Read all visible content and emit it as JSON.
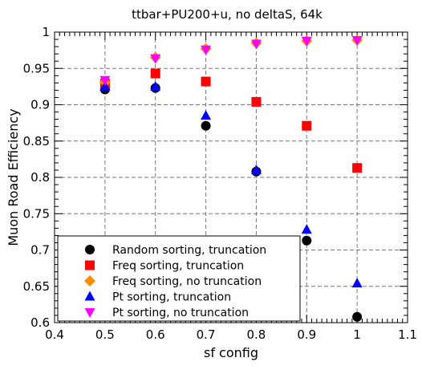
{
  "chart_data": {
    "type": "scatter",
    "title": "ttbar+PU200+u, no deltaS, 64k",
    "xlabel": "sf config",
    "ylabel": "Muon Road Efficiency",
    "xlim": [
      0.4,
      1.1
    ],
    "ylim": [
      0.6,
      1.0
    ],
    "xticks": [
      "0.4",
      "0.5",
      "0.6",
      "0.7",
      "0.8",
      "0.9",
      "1",
      "1.1"
    ],
    "yticks": [
      "0.6",
      "0.65",
      "0.7",
      "0.75",
      "0.8",
      "0.85",
      "0.9",
      "0.95",
      "1"
    ],
    "grid": true,
    "legend_position": "lower-left",
    "series": [
      {
        "name": "Random sorting, truncation",
        "marker": "circle",
        "color": "#000000",
        "x": [
          0.5,
          0.6,
          0.7,
          0.8,
          0.9,
          1.0
        ],
        "y": [
          0.921,
          0.923,
          0.871,
          0.808,
          0.713,
          0.608
        ]
      },
      {
        "name": "Freq sorting, truncation",
        "marker": "square",
        "color": "#ff0000",
        "x": [
          0.5,
          0.6,
          0.7,
          0.8,
          0.9,
          1.0
        ],
        "y": [
          0.929,
          0.943,
          0.932,
          0.904,
          0.871,
          0.813
        ]
      },
      {
        "name": "Freq sorting, no truncation",
        "marker": "diamond",
        "color": "#ff8c00",
        "x": [
          0.5,
          0.6,
          0.7,
          0.8,
          0.9,
          1.0
        ],
        "y": [
          0.931,
          0.965,
          0.977,
          0.985,
          0.988,
          0.989
        ]
      },
      {
        "name": "Pt sorting, truncation",
        "marker": "triangle-up",
        "color": "#0000ff",
        "x": [
          0.5,
          0.6,
          0.7,
          0.8,
          0.9,
          1.0
        ],
        "y": [
          0.925,
          0.925,
          0.885,
          0.81,
          0.728,
          0.654
        ]
      },
      {
        "name": "Pt sorting, no truncation",
        "marker": "triangle-down",
        "color": "#ff00ff",
        "x": [
          0.5,
          0.6,
          0.7,
          0.8,
          0.9,
          1.0
        ],
        "y": [
          0.934,
          0.964,
          0.976,
          0.984,
          0.988,
          0.989
        ]
      }
    ]
  }
}
